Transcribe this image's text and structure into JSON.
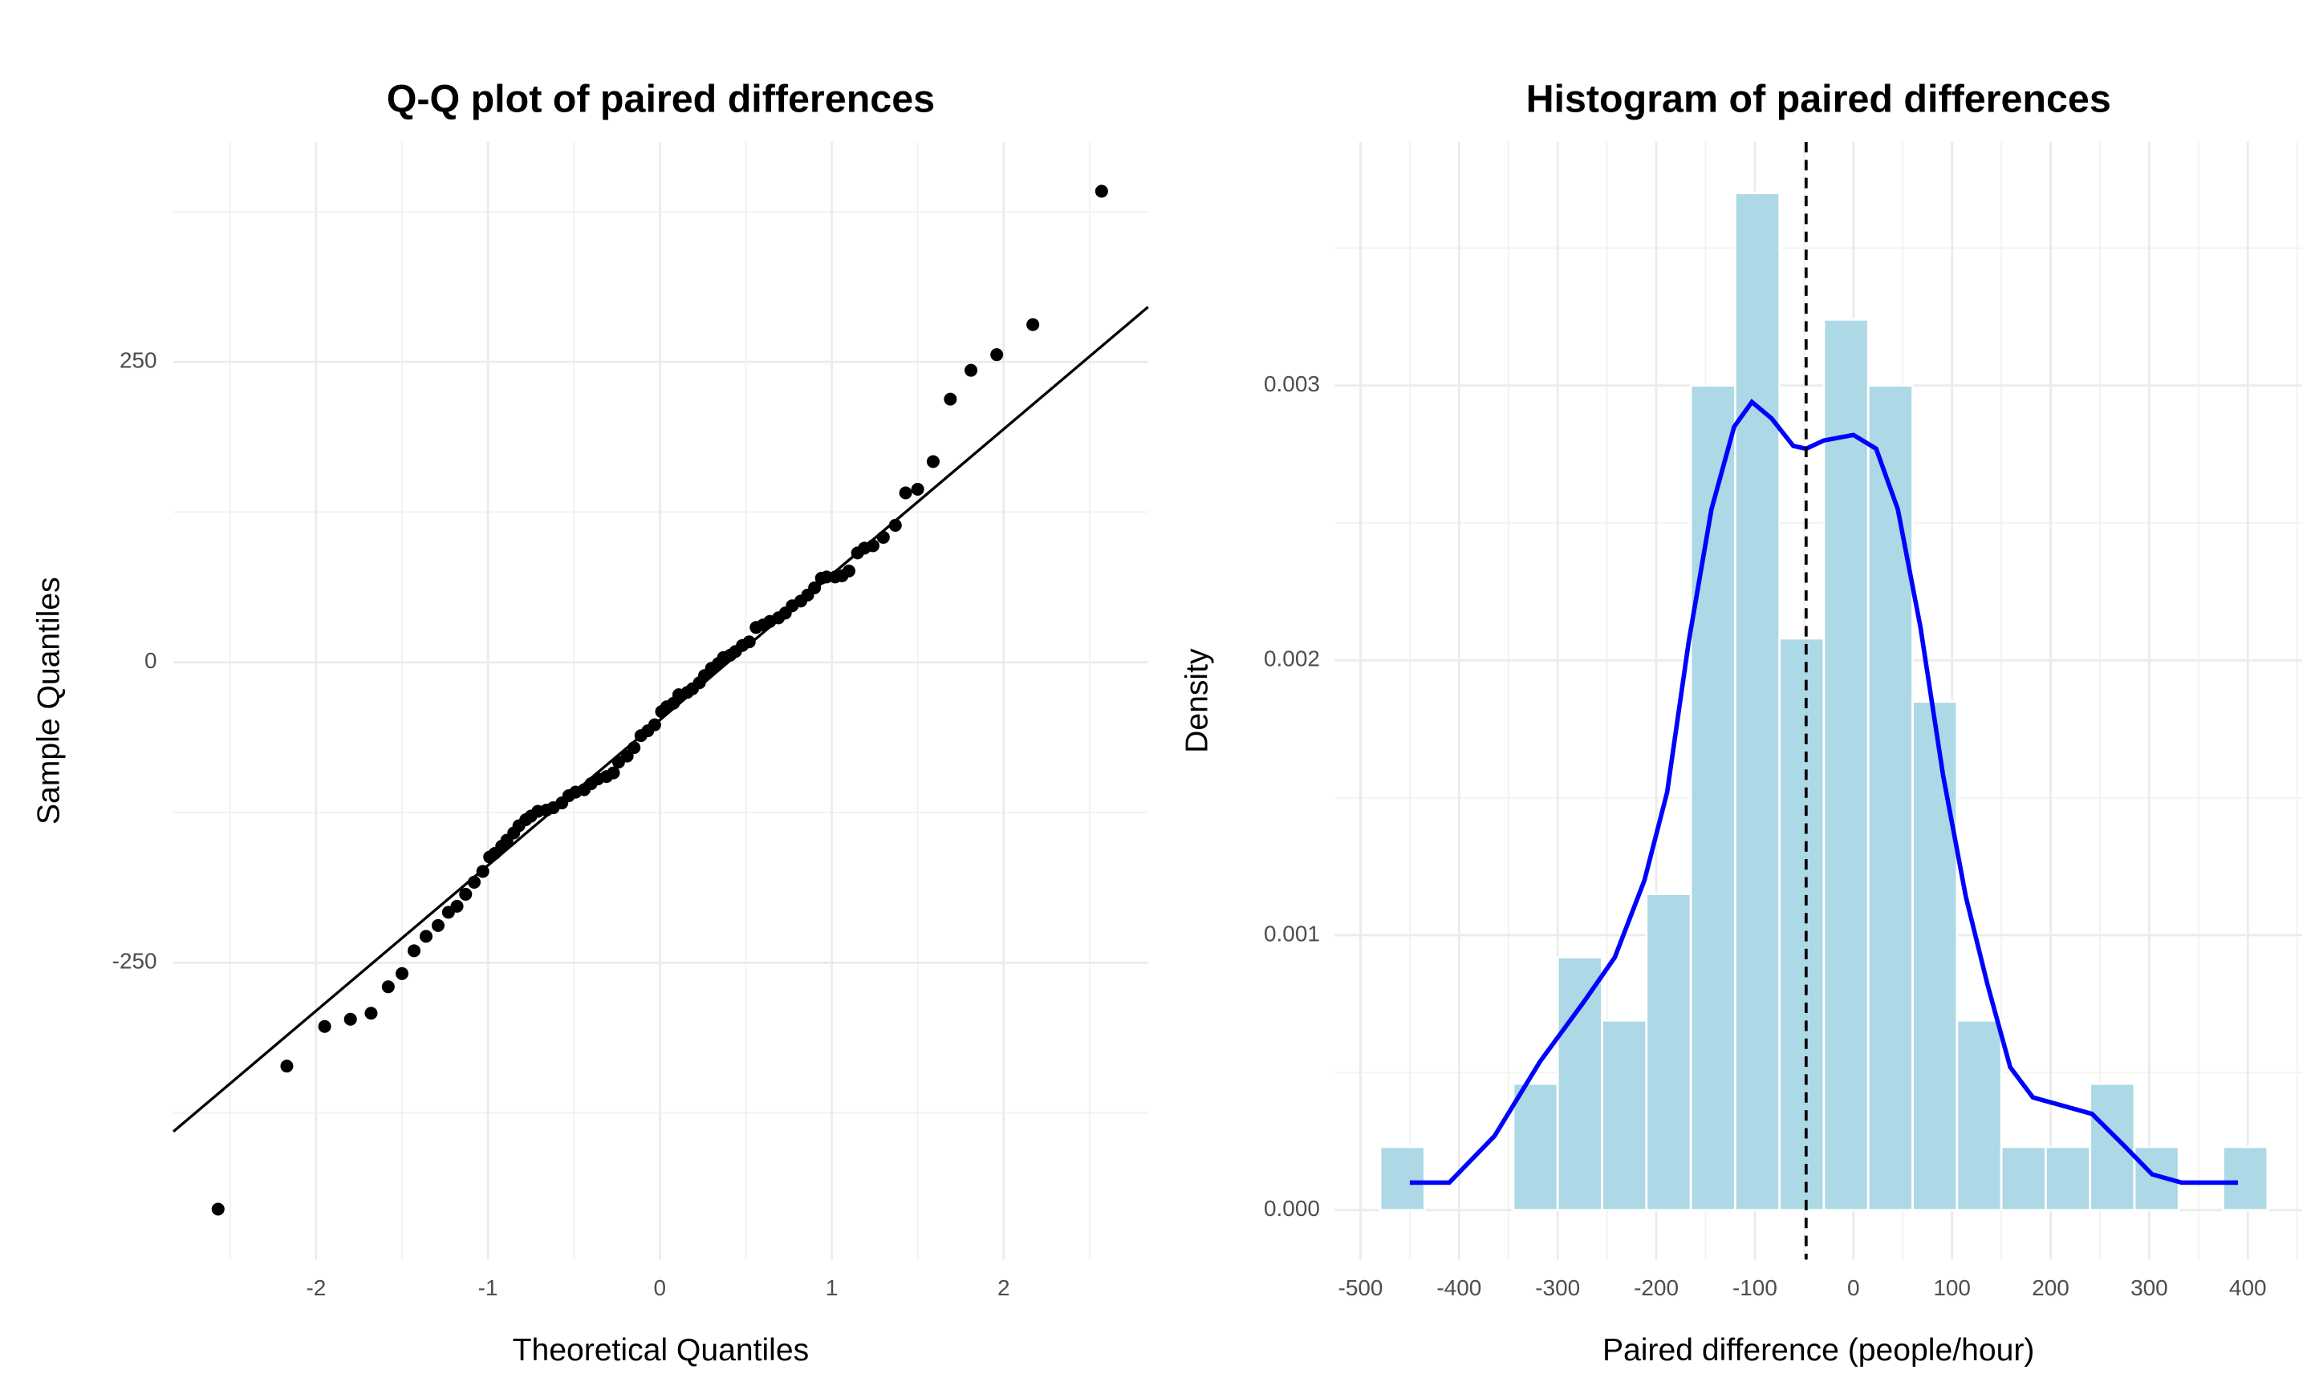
{
  "chart_data": [
    {
      "type": "scatter",
      "title": "Q-Q plot of paired differences",
      "x_label": "Theoretical Quantiles",
      "y_label": "Sample Quantiles",
      "x": [
        -2.57,
        -2.17,
        -1.95,
        -1.8,
        -1.68,
        -1.58,
        -1.5,
        -1.43,
        -1.36,
        -1.29,
        -1.23,
        -1.18,
        -1.13,
        -1.08,
        -1.03,
        -0.99,
        -0.96,
        -0.92,
        -0.89,
        -0.85,
        -0.82,
        -0.78,
        -0.75,
        -0.71,
        -0.66,
        -0.62,
        -0.57,
        -0.53,
        -0.49,
        -0.44,
        -0.4,
        -0.36,
        -0.31,
        -0.27,
        -0.24,
        -0.19,
        -0.15,
        -0.11,
        -0.07,
        -0.03,
        0.01,
        0.04,
        0.08,
        0.11,
        0.16,
        0.19,
        0.23,
        0.26,
        0.3,
        0.34,
        0.37,
        0.41,
        0.44,
        0.48,
        0.52,
        0.56,
        0.6,
        0.64,
        0.69,
        0.73,
        0.77,
        0.82,
        0.86,
        0.9,
        0.94,
        0.97,
        1.02,
        1.06,
        1.1,
        1.15,
        1.19,
        1.24,
        1.3,
        1.37,
        1.43,
        1.5,
        1.59,
        1.69,
        1.81,
        1.96,
        2.17,
        2.57
      ],
      "values": [
        -455,
        -336,
        -303,
        -297,
        -292,
        -270,
        -259,
        -240,
        -228,
        -219,
        -208,
        -203,
        -193,
        -183,
        -174,
        -162,
        -159,
        -153,
        -148,
        -142,
        -136,
        -131,
        -128,
        -124,
        -123,
        -121,
        -117,
        -111,
        -108,
        -106,
        -101,
        -97,
        -95,
        -92,
        -83,
        -78,
        -71,
        -61,
        -57,
        -52,
        -41,
        -37,
        -34,
        -27,
        -25,
        -22,
        -17,
        -11,
        -5,
        -1,
        4,
        6,
        9,
        14,
        17,
        29,
        31,
        34,
        37,
        41,
        47,
        51,
        56,
        62,
        70,
        71,
        71,
        72,
        76,
        91,
        95,
        97,
        104,
        114,
        141,
        144,
        167,
        219,
        243,
        256,
        281,
        392
      ],
      "color": "#000000",
      "qq_line": {
        "intercept": -48,
        "slope": 121,
        "color": "#000000"
      },
      "xlim": [
        -2.83,
        2.84
      ],
      "ylim": [
        -497,
        433
      ],
      "xticks": [
        -2,
        -1,
        0,
        1,
        2
      ],
      "yticks": [
        -250,
        0,
        250
      ],
      "x_minor_ticks": [
        -2.5,
        -1.5,
        -0.5,
        0.5,
        1.5,
        2.5
      ],
      "y_minor_ticks": [
        -375,
        -125,
        125,
        375
      ],
      "grid": true
    },
    {
      "type": "histogram",
      "title": "Histogram of paired differences",
      "x_label": "Paired difference (people/hour)",
      "y_label": "Density",
      "bins": [
        -480,
        -435,
        -390,
        -345,
        -300,
        -255,
        -210,
        -165,
        -120,
        -75,
        -30,
        15,
        60,
        105,
        150,
        195,
        240,
        285,
        330,
        375,
        420
      ],
      "values": [
        0.00023,
        0,
        0,
        0.00046,
        0.00092,
        0.00069,
        0.00115,
        0.003,
        0.0037,
        0.00208,
        0.00324,
        0.003,
        0.00185,
        0.00069,
        0.00023,
        0.00023,
        0.00046,
        0.00023,
        0,
        0.00023
      ],
      "color": "#add8e6",
      "density": {
        "color": "#0000ff",
        "x": [
          -450,
          -410,
          -364,
          -318,
          -273,
          -242,
          -212,
          -189,
          -167,
          -144,
          -121,
          -103,
          -83,
          -61,
          -48,
          -30,
          0,
          23,
          45,
          68,
          91,
          114,
          136,
          159,
          182,
          212,
          242,
          273,
          303,
          333,
          390
        ],
        "y": [
          0.0001,
          0.0001,
          0.00027,
          0.00054,
          0.00076,
          0.00092,
          0.0012,
          0.00152,
          0.00207,
          0.00255,
          0.00285,
          0.00294,
          0.00288,
          0.00278,
          0.00277,
          0.0028,
          0.00282,
          0.00277,
          0.00255,
          0.00212,
          0.00158,
          0.00114,
          0.00082,
          0.00052,
          0.00041,
          0.00038,
          0.00035,
          0.00024,
          0.00013,
          0.0001,
          0.0001
        ]
      },
      "vline": -48,
      "xlim": [
        -526,
        455
      ],
      "ylim": [
        -0.00018,
        0.003886
      ],
      "xticks": [
        -500,
        -400,
        -300,
        -200,
        -100,
        0,
        100,
        200,
        300,
        400
      ],
      "yticks": [
        {
          "value": 0,
          "label": "0.000"
        },
        {
          "value": 0.001,
          "label": "0.001"
        },
        {
          "value": 0.002,
          "label": "0.002"
        },
        {
          "value": 0.003,
          "label": "0.003"
        }
      ],
      "x_minor_ticks": [
        -450,
        -350,
        -250,
        -150,
        -50,
        50,
        150,
        250,
        350,
        450
      ],
      "y_minor_ticks": [
        0.0005,
        0.0015,
        0.0025,
        0.0035
      ],
      "grid": true
    }
  ]
}
